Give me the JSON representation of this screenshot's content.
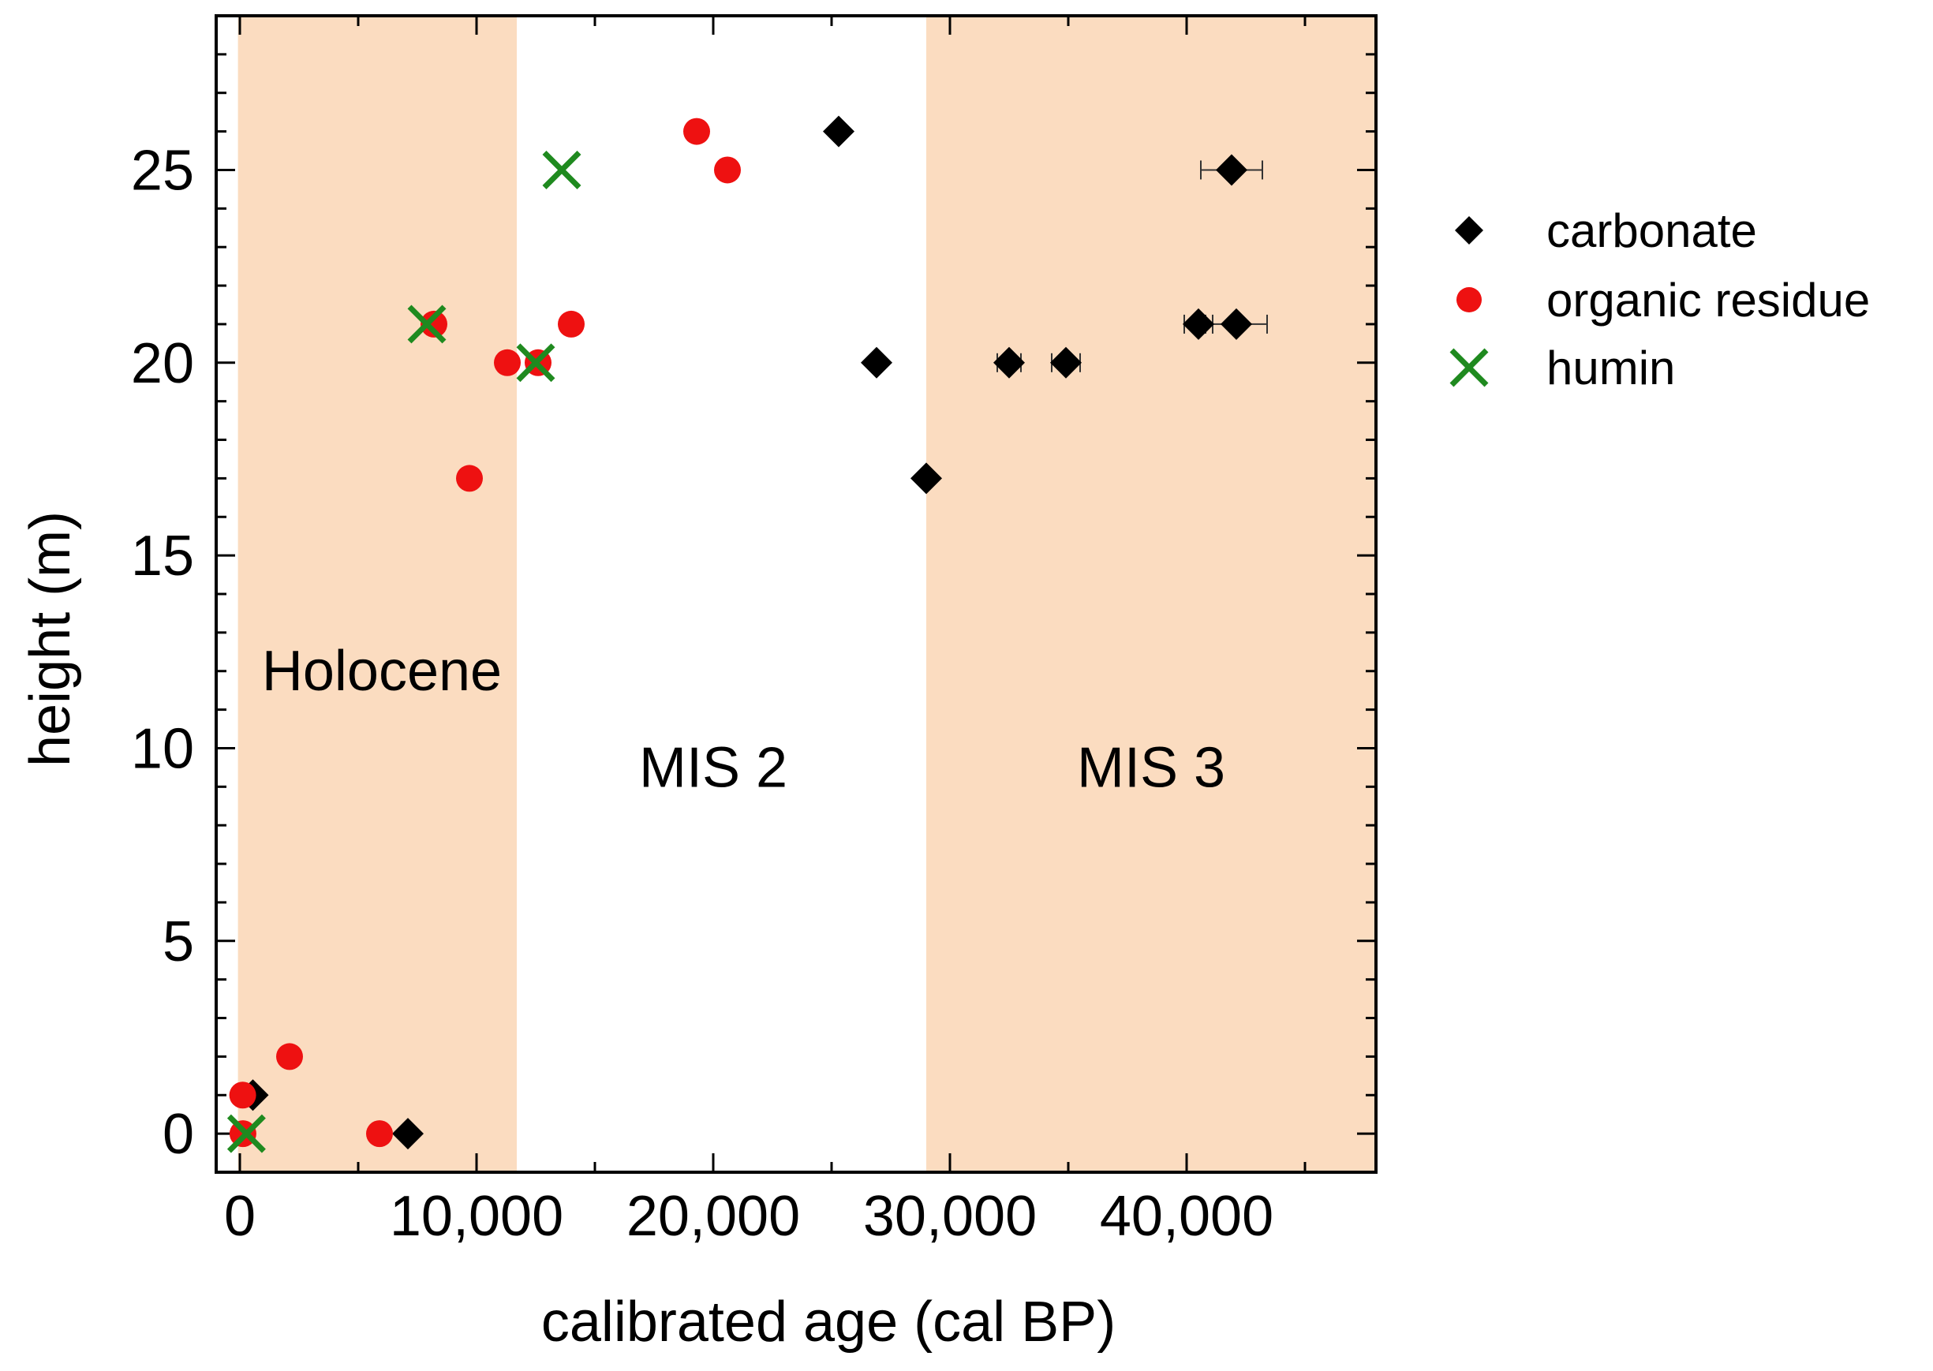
{
  "chart_data": {
    "type": "scatter",
    "title": "",
    "xlabel": "calibrated age (cal BP)",
    "ylabel": "height (m)",
    "xlim": [
      -1000,
      48000
    ],
    "ylim": [
      -1,
      29
    ],
    "x_ticks": [
      0,
      10000,
      20000,
      30000,
      40000
    ],
    "x_tick_labels": [
      "0",
      "10,000",
      "20,000",
      "30,000",
      "40,000"
    ],
    "y_ticks": [
      0,
      5,
      10,
      15,
      20,
      25
    ],
    "y_tick_labels": [
      "0",
      "5",
      "10",
      "15",
      "20",
      "25"
    ],
    "grid": false,
    "legend_position": "outside-right",
    "regions": [
      {
        "label": "Holocene",
        "x0": -80,
        "x1": 11700,
        "color": "#fbdcc0",
        "label_x": 6000,
        "label_y": 11.5
      },
      {
        "label": "MIS 2",
        "x0": 11700,
        "x1": 29000,
        "color": "#ffffff",
        "label_x": 20000,
        "label_y": 9
      },
      {
        "label": "MIS 3",
        "x0": 29000,
        "x1": 48000,
        "color": "#fbdcc0",
        "label_x": 38500,
        "label_y": 9
      }
    ],
    "series": [
      {
        "name": "carbonate",
        "marker": "diamond",
        "color": "#000000",
        "points": [
          {
            "x": 550,
            "y": 1,
            "xerr": 0
          },
          {
            "x": 7100,
            "y": 0,
            "xerr": 0
          },
          {
            "x": 25300,
            "y": 26,
            "xerr": 0
          },
          {
            "x": 26900,
            "y": 20,
            "xerr": 0
          },
          {
            "x": 29000,
            "y": 17,
            "xerr": 0
          },
          {
            "x": 32500,
            "y": 20,
            "xerr": 500
          },
          {
            "x": 34900,
            "y": 20,
            "xerr": 600
          },
          {
            "x": 40500,
            "y": 21,
            "xerr": 600
          },
          {
            "x": 42100,
            "y": 21,
            "xerr": 1300
          },
          {
            "x": 41900,
            "y": 25,
            "xerr": 1300
          }
        ]
      },
      {
        "name": "organic residue",
        "marker": "circle",
        "color": "#ee1111",
        "points": [
          {
            "x": 120,
            "y": 1
          },
          {
            "x": 130,
            "y": 0
          },
          {
            "x": 2100,
            "y": 2
          },
          {
            "x": 5900,
            "y": 0
          },
          {
            "x": 8200,
            "y": 21
          },
          {
            "x": 9700,
            "y": 17
          },
          {
            "x": 11300,
            "y": 20
          },
          {
            "x": 12600,
            "y": 20
          },
          {
            "x": 14000,
            "y": 21
          },
          {
            "x": 19300,
            "y": 26
          },
          {
            "x": 20600,
            "y": 25
          }
        ]
      },
      {
        "name": "humin",
        "marker": "x",
        "color": "#1f8a1f",
        "points": [
          {
            "x": 280,
            "y": 0
          },
          {
            "x": 7900,
            "y": 21
          },
          {
            "x": 12500,
            "y": 20
          },
          {
            "x": 13600,
            "y": 25
          }
        ]
      }
    ]
  }
}
